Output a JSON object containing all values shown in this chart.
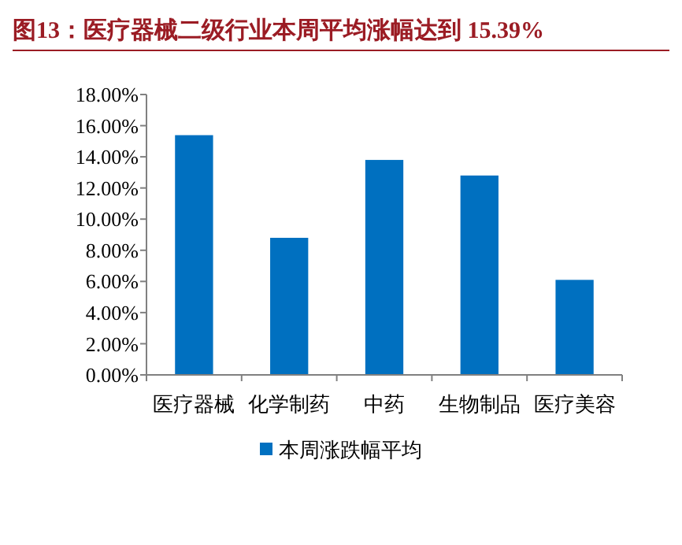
{
  "chart_data": {
    "type": "bar",
    "title": "图13：医疗器械二级行业本周平均涨幅达到 15.39%",
    "categories": [
      "医疗器械",
      "化学制药",
      "中药",
      "生物制品",
      "医疗美容"
    ],
    "series": [
      {
        "name": "本周涨跌幅平均",
        "color": "#0070c0",
        "values": [
          15.39,
          8.8,
          13.8,
          12.8,
          6.1
        ]
      }
    ],
    "ylim": [
      0,
      18
    ],
    "yticks": [
      {
        "value": 0,
        "label": "0.00%"
      },
      {
        "value": 2,
        "label": "2.00%"
      },
      {
        "value": 4,
        "label": "4.00%"
      },
      {
        "value": 6,
        "label": "6.00%"
      },
      {
        "value": 8,
        "label": "8.00%"
      },
      {
        "value": 10,
        "label": "10.00%"
      },
      {
        "value": 12,
        "label": "12.00%"
      },
      {
        "value": 14,
        "label": "14.00%"
      },
      {
        "value": 16,
        "label": "16.00%"
      },
      {
        "value": 18,
        "label": "18.00%"
      }
    ],
    "grid": false,
    "legend": "bottom"
  }
}
